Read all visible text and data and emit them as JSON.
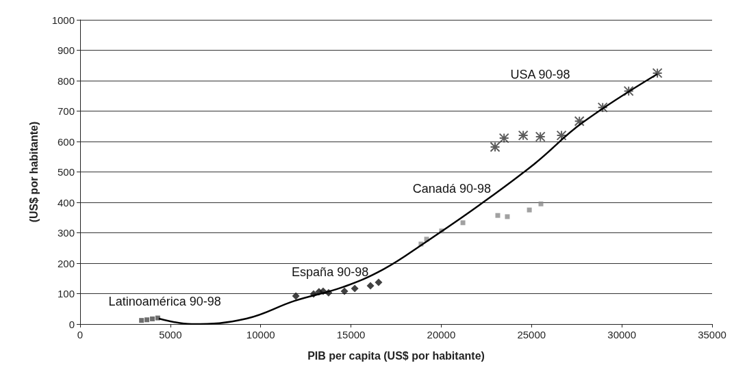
{
  "chart_data": {
    "type": "scatter",
    "xlabel": "PIB per capita (US$ por habitante)",
    "ylabel": "(US$ por habitante)",
    "xlim": [
      0,
      35000
    ],
    "xticks": [
      0,
      5000,
      10000,
      15000,
      20000,
      25000,
      30000,
      35000
    ],
    "ylim": [
      0,
      1000
    ],
    "yticks": [
      0,
      100,
      200,
      300,
      400,
      500,
      600,
      700,
      800,
      900,
      1000
    ],
    "grid": "y",
    "series": [
      {
        "name": "Latinoamérica 90-98",
        "color": "#4a4a4a",
        "marker": "square",
        "x": [
          3400,
          3700,
          4000,
          4300
        ],
        "values": [
          12,
          14,
          17,
          20
        ]
      },
      {
        "name": "España 90-98",
        "color": "#111111",
        "marker": "diamond",
        "x": [
          11950,
          12930,
          13230,
          13460,
          13760,
          14640,
          15210,
          16080,
          16530
        ],
        "values": [
          92,
          99,
          106,
          108,
          103,
          108,
          117,
          126,
          137
        ]
      },
      {
        "name": "Canadá 90-98",
        "color": "#8a8a8a",
        "marker": "square",
        "x": [
          18880,
          19190,
          20020,
          21200,
          23130,
          23660,
          24880,
          25520
        ],
        "values": [
          263,
          279,
          306,
          333,
          357,
          353,
          375,
          395
        ]
      },
      {
        "name": "USA 90-98",
        "color": "#333333",
        "marker": "cross",
        "x": [
          22980,
          23480,
          24540,
          25490,
          26660,
          27650,
          28940,
          30380,
          31970
        ],
        "values": [
          582,
          611,
          620,
          616,
          620,
          667,
          712,
          766,
          825
        ]
      },
      {
        "type": "line",
        "color": "#000000",
        "marker": "none",
        "x": [
          4360,
          6180,
          9220,
          11870,
          14530,
          16800,
          19080,
          22110,
          25150,
          27800,
          31970
        ],
        "values": [
          18,
          0,
          18,
          76,
          121,
          180,
          267,
          391,
          526,
          661,
          822
        ]
      }
    ]
  }
}
